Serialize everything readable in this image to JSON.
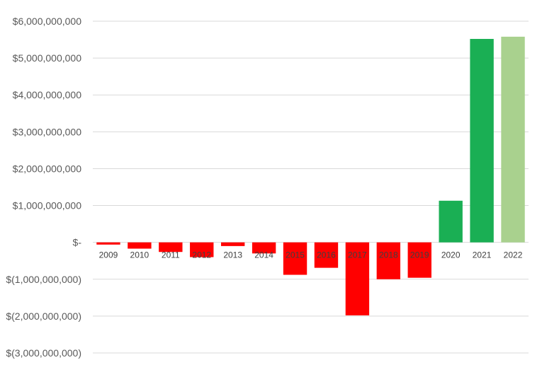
{
  "chart_data": {
    "type": "bar",
    "title": "",
    "xlabel": "",
    "ylabel": "",
    "categories": [
      "2009",
      "2010",
      "2011",
      "2012",
      "2013",
      "2014",
      "2015",
      "2016",
      "2017",
      "2018",
      "2019",
      "2020",
      "2021",
      "2022"
    ],
    "values": [
      -60000000,
      -170000000,
      -260000000,
      -400000000,
      -100000000,
      -300000000,
      -880000000,
      -690000000,
      -1980000000,
      -1000000000,
      -960000000,
      1130000000,
      5520000000,
      5580000000
    ],
    "bar_colors": [
      "#ff0000",
      "#ff0000",
      "#ff0000",
      "#ff0000",
      "#ff0000",
      "#ff0000",
      "#ff0000",
      "#ff0000",
      "#ff0000",
      "#ff0000",
      "#ff0000",
      "#1aaf54",
      "#1aaf54",
      "#a9d18e"
    ],
    "ylim": [
      -3000000000,
      6000000000
    ],
    "y_ticks": [
      6000000000,
      5000000000,
      4000000000,
      3000000000,
      2000000000,
      1000000000,
      0,
      -1000000000,
      -2000000000,
      -3000000000
    ],
    "y_tick_labels": [
      "$6,000,000,000",
      "$5,000,000,000",
      "$4,000,000,000",
      "$3,000,000,000",
      "$2,000,000,000",
      "$1,000,000,000",
      "$-",
      "$(1,000,000,000)",
      "$(2,000,000,000)",
      "$(3,000,000,000)"
    ],
    "grid": true,
    "legend": "none",
    "colors": {
      "negative": "#ff0000",
      "positive": "#1aaf54",
      "latest": "#a9d18e",
      "grid": "#d9d9d9"
    }
  }
}
